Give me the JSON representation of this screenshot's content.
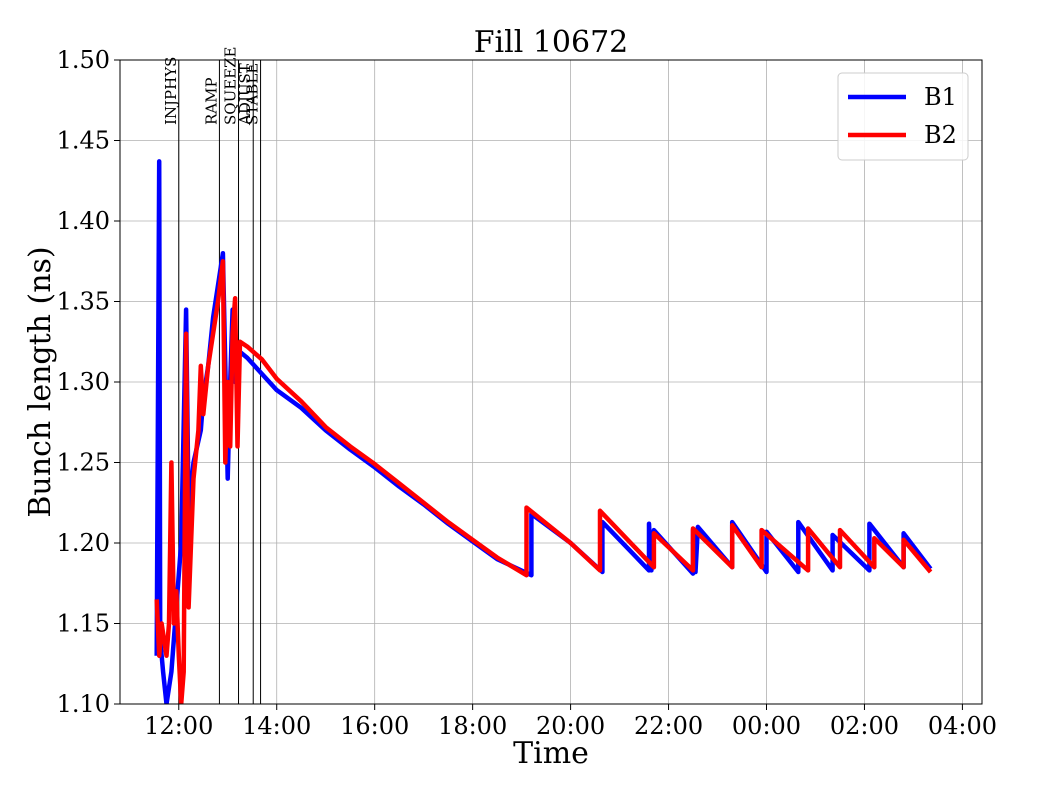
{
  "chart_data": {
    "type": "line",
    "title": "Fill 10672",
    "xlabel": "Time",
    "ylabel": "Bunch length (ns)",
    "x_unit": "hours",
    "xlim": [
      10.8,
      28.4
    ],
    "ylim": [
      1.1,
      1.5
    ],
    "x_ticks": [
      {
        "value": 12,
        "label": "12:00"
      },
      {
        "value": 14,
        "label": "14:00"
      },
      {
        "value": 16,
        "label": "16:00"
      },
      {
        "value": 18,
        "label": "18:00"
      },
      {
        "value": 20,
        "label": "20:00"
      },
      {
        "value": 22,
        "label": "22:00"
      },
      {
        "value": 24,
        "label": "00:00"
      },
      {
        "value": 26,
        "label": "02:00"
      },
      {
        "value": 28,
        "label": "04:00"
      }
    ],
    "y_ticks": [
      {
        "value": 1.1,
        "label": "1.10"
      },
      {
        "value": 1.15,
        "label": "1.15"
      },
      {
        "value": 1.2,
        "label": "1.20"
      },
      {
        "value": 1.25,
        "label": "1.25"
      },
      {
        "value": 1.3,
        "label": "1.30"
      },
      {
        "value": 1.35,
        "label": "1.35"
      },
      {
        "value": 1.4,
        "label": "1.40"
      },
      {
        "value": 1.45,
        "label": "1.45"
      },
      {
        "value": 1.5,
        "label": "1.50"
      }
    ],
    "grid": true,
    "legend_position": "top-right",
    "phases": [
      {
        "label": "INJPHYS",
        "x": 12.0
      },
      {
        "label": "RAMP",
        "x": 12.83
      },
      {
        "label": "SQUEEZE",
        "x": 13.22
      },
      {
        "label": "ADJUST",
        "x": 13.52
      },
      {
        "label": "STABLE",
        "x": 13.67
      }
    ],
    "series": [
      {
        "name": "B1",
        "color": "#0000ff",
        "points": [
          [
            11.55,
            1.13
          ],
          [
            11.6,
            1.437
          ],
          [
            11.62,
            1.14
          ],
          [
            11.68,
            1.12
          ],
          [
            11.75,
            1.1
          ],
          [
            11.85,
            1.12
          ],
          [
            11.95,
            1.16
          ],
          [
            12.05,
            1.2
          ],
          [
            12.12,
            1.3
          ],
          [
            12.15,
            1.345
          ],
          [
            12.2,
            1.22
          ],
          [
            12.3,
            1.25
          ],
          [
            12.45,
            1.27
          ],
          [
            12.5,
            1.29
          ],
          [
            12.6,
            1.31
          ],
          [
            12.7,
            1.34
          ],
          [
            12.8,
            1.36
          ],
          [
            12.9,
            1.38
          ],
          [
            12.95,
            1.31
          ],
          [
            13.0,
            1.24
          ],
          [
            13.05,
            1.3
          ],
          [
            13.1,
            1.345
          ],
          [
            13.15,
            1.3
          ],
          [
            13.2,
            1.32
          ],
          [
            13.4,
            1.315
          ],
          [
            13.7,
            1.305
          ],
          [
            14.0,
            1.295
          ],
          [
            14.5,
            1.284
          ],
          [
            15.0,
            1.27
          ],
          [
            15.5,
            1.258
          ],
          [
            16.0,
            1.247
          ],
          [
            16.5,
            1.235
          ],
          [
            17.0,
            1.224
          ],
          [
            17.5,
            1.212
          ],
          [
            18.0,
            1.201
          ],
          [
            18.5,
            1.19
          ],
          [
            19.2,
            1.18
          ],
          [
            19.2,
            1.218
          ],
          [
            20.0,
            1.2
          ],
          [
            20.65,
            1.182
          ],
          [
            20.65,
            1.213
          ],
          [
            21.6,
            1.183
          ],
          [
            21.6,
            1.212
          ],
          [
            21.65,
            1.183
          ],
          [
            21.7,
            1.208
          ],
          [
            22.5,
            1.181
          ],
          [
            22.5,
            1.208
          ],
          [
            22.55,
            1.182
          ],
          [
            22.6,
            1.21
          ],
          [
            23.3,
            1.185
          ],
          [
            23.3,
            1.213
          ],
          [
            24.0,
            1.182
          ],
          [
            24.0,
            1.207
          ],
          [
            24.65,
            1.182
          ],
          [
            24.65,
            1.213
          ],
          [
            25.35,
            1.183
          ],
          [
            25.35,
            1.205
          ],
          [
            26.1,
            1.183
          ],
          [
            26.1,
            1.212
          ],
          [
            26.8,
            1.185
          ],
          [
            26.8,
            1.206
          ],
          [
            27.35,
            1.184
          ]
        ]
      },
      {
        "name": "B2",
        "color": "#ff0000",
        "points": [
          [
            11.55,
            1.165
          ],
          [
            11.6,
            1.13
          ],
          [
            11.65,
            1.15
          ],
          [
            11.75,
            1.13
          ],
          [
            11.8,
            1.15
          ],
          [
            11.85,
            1.25
          ],
          [
            11.9,
            1.15
          ],
          [
            11.95,
            1.17
          ],
          [
            12.0,
            1.13
          ],
          [
            12.05,
            1.1
          ],
          [
            12.1,
            1.12
          ],
          [
            12.15,
            1.33
          ],
          [
            12.2,
            1.16
          ],
          [
            12.3,
            1.24
          ],
          [
            12.4,
            1.27
          ],
          [
            12.45,
            1.31
          ],
          [
            12.5,
            1.28
          ],
          [
            12.6,
            1.31
          ],
          [
            12.7,
            1.33
          ],
          [
            12.8,
            1.35
          ],
          [
            12.9,
            1.375
          ],
          [
            12.95,
            1.25
          ],
          [
            13.0,
            1.3
          ],
          [
            13.05,
            1.26
          ],
          [
            13.1,
            1.33
          ],
          [
            13.15,
            1.352
          ],
          [
            13.2,
            1.26
          ],
          [
            13.25,
            1.325
          ],
          [
            13.4,
            1.322
          ],
          [
            13.7,
            1.314
          ],
          [
            14.0,
            1.302
          ],
          [
            14.5,
            1.288
          ],
          [
            15.0,
            1.272
          ],
          [
            15.5,
            1.26
          ],
          [
            16.0,
            1.249
          ],
          [
            16.5,
            1.237
          ],
          [
            17.0,
            1.225
          ],
          [
            17.5,
            1.213
          ],
          [
            18.0,
            1.202
          ],
          [
            18.5,
            1.191
          ],
          [
            19.1,
            1.18
          ],
          [
            19.1,
            1.222
          ],
          [
            20.0,
            1.2
          ],
          [
            20.6,
            1.183
          ],
          [
            20.6,
            1.22
          ],
          [
            21.7,
            1.185
          ],
          [
            21.7,
            1.206
          ],
          [
            22.5,
            1.183
          ],
          [
            22.5,
            1.209
          ],
          [
            23.3,
            1.185
          ],
          [
            23.3,
            1.211
          ],
          [
            23.9,
            1.185
          ],
          [
            23.9,
            1.208
          ],
          [
            24.85,
            1.183
          ],
          [
            24.85,
            1.209
          ],
          [
            25.5,
            1.185
          ],
          [
            25.5,
            1.208
          ],
          [
            26.2,
            1.185
          ],
          [
            26.2,
            1.203
          ],
          [
            26.8,
            1.185
          ],
          [
            26.8,
            1.202
          ],
          [
            27.35,
            1.182
          ]
        ]
      }
    ]
  }
}
